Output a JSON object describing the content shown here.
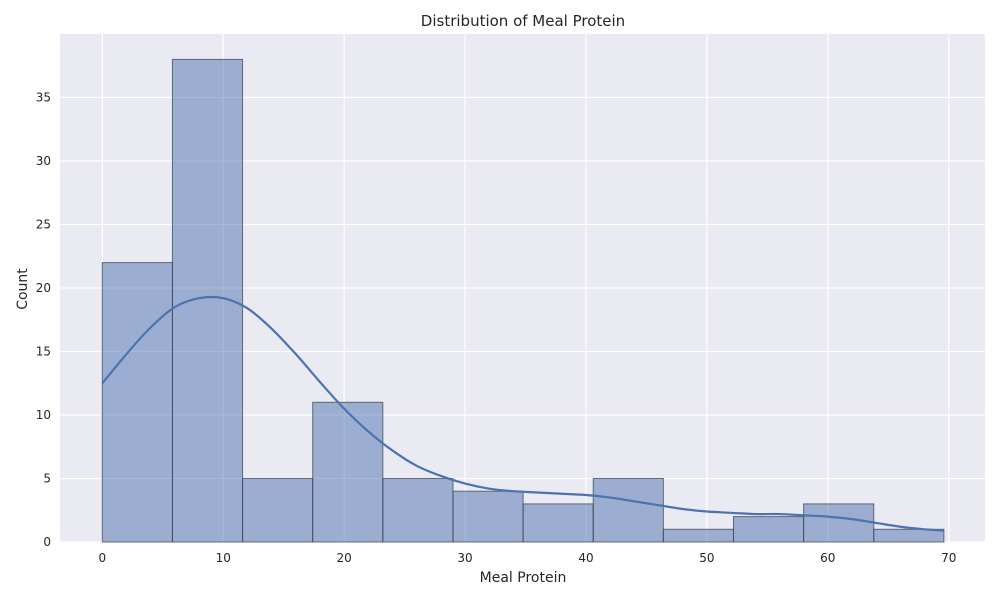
{
  "chart_data": {
    "type": "bar",
    "subtype": "histogram-with-kde",
    "title": "Distribution of Meal Protein",
    "xlabel": "Meal Protein",
    "ylabel": "Count",
    "xlim": [
      -3.5,
      73
    ],
    "ylim": [
      0,
      40
    ],
    "x_ticks": [
      0,
      10,
      20,
      30,
      40,
      50,
      60,
      70
    ],
    "y_ticks": [
      0,
      5,
      10,
      15,
      20,
      25,
      30,
      35
    ],
    "grid": true,
    "legend": "none",
    "colors": {
      "background": "#eaeaf2",
      "bar_fill": "#4c72b0",
      "bar_fill_opacity": 0.5,
      "bar_edge": "#3d4451",
      "kde_line": "#4c72b0"
    },
    "bins": [
      {
        "start": 0.0,
        "end": 5.8,
        "count": 22
      },
      {
        "start": 5.8,
        "end": 11.6,
        "count": 38
      },
      {
        "start": 11.6,
        "end": 17.4,
        "count": 5
      },
      {
        "start": 17.4,
        "end": 23.2,
        "count": 11
      },
      {
        "start": 23.2,
        "end": 29.0,
        "count": 5
      },
      {
        "start": 29.0,
        "end": 34.8,
        "count": 4
      },
      {
        "start": 34.8,
        "end": 40.6,
        "count": 3
      },
      {
        "start": 40.6,
        "end": 46.4,
        "count": 5
      },
      {
        "start": 46.4,
        "end": 52.2,
        "count": 1
      },
      {
        "start": 52.2,
        "end": 58.0,
        "count": 2
      },
      {
        "start": 58.0,
        "end": 63.8,
        "count": 3
      },
      {
        "start": 63.8,
        "end": 69.6,
        "count": 1
      }
    ],
    "kde": {
      "x": [
        0,
        2,
        4,
        6,
        8,
        10,
        12,
        14,
        16,
        18,
        20,
        22,
        24,
        26,
        28,
        30,
        32,
        34,
        36,
        38,
        40,
        42,
        44,
        46,
        48,
        50,
        52,
        54,
        56,
        58,
        60,
        62,
        64,
        66,
        68,
        69.6
      ],
      "y": [
        12.5,
        14.8,
        16.9,
        18.5,
        19.2,
        19.2,
        18.4,
        16.8,
        14.8,
        12.6,
        10.5,
        8.7,
        7.2,
        6.0,
        5.2,
        4.6,
        4.2,
        4.0,
        3.9,
        3.8,
        3.7,
        3.5,
        3.2,
        2.9,
        2.6,
        2.4,
        2.3,
        2.2,
        2.2,
        2.1,
        2.0,
        1.8,
        1.5,
        1.2,
        1.0,
        0.9
      ]
    }
  }
}
